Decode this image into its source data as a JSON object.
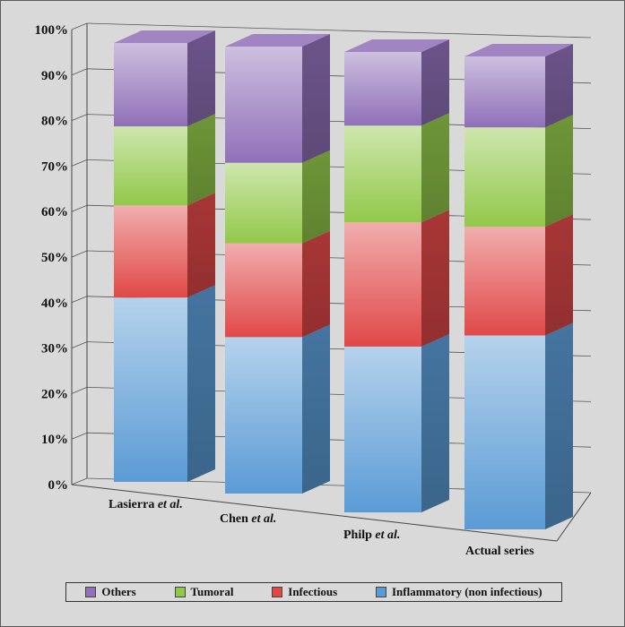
{
  "chart_data": {
    "type": "bar",
    "stacked": true,
    "three_d": true,
    "categories": [
      {
        "plain": "Lasierra ",
        "italic": "et al."
      },
      {
        "plain": "Chen ",
        "italic": "et al."
      },
      {
        "plain": "Philp ",
        "italic": "et al."
      },
      {
        "plain": "Actual series",
        "italic": ""
      }
    ],
    "series": [
      {
        "name": "Inflammatory (non infectious)",
        "color": "#5b9bd5",
        "values": [
          42,
          35,
          36,
          41
        ]
      },
      {
        "name": "Infectious",
        "color": "#e04848",
        "values": [
          21,
          21,
          27,
          23
        ]
      },
      {
        "name": "Tumoral",
        "color": "#92c84a",
        "values": [
          18,
          18,
          21,
          21
        ]
      },
      {
        "name": "Others",
        "color": "#9070b8",
        "values": [
          19,
          26,
          16,
          15
        ]
      }
    ],
    "y_ticks": [
      "0%",
      "10%",
      "20%",
      "30%",
      "40%",
      "50%",
      "60%",
      "70%",
      "80%",
      "90%",
      "100%"
    ],
    "ylim": [
      0,
      100
    ],
    "grid": true,
    "legend_position": "bottom"
  },
  "legend_order": [
    3,
    2,
    1,
    0
  ]
}
